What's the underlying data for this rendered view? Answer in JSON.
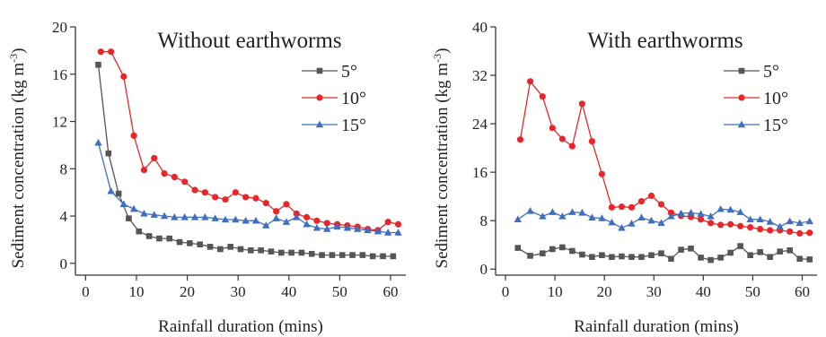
{
  "chart_data": [
    {
      "type": "line",
      "title": "Without earthworms",
      "xlabel": "Rainfall duration (mins)",
      "ylabel": "Sediment concentration (kg m",
      "ylabel_sup": "-3",
      "ylabel_close": ")",
      "xlim": [
        -2,
        63
      ],
      "ylim": [
        -1,
        20
      ],
      "xticks": [
        0,
        10,
        20,
        30,
        40,
        50,
        60
      ],
      "yticks": [
        0,
        4,
        8,
        12,
        16,
        20
      ],
      "legend": "top-right",
      "series": [
        {
          "name": "5°",
          "color": "#555555",
          "marker": "square",
          "x": [
            2.5,
            4.5,
            6.5,
            8.5,
            10.5,
            12.5,
            14.5,
            16.5,
            18.5,
            20.5,
            22.5,
            24.5,
            26.5,
            28.5,
            30.5,
            32.5,
            34.5,
            36.5,
            38.5,
            40.5,
            42.5,
            44.5,
            46.5,
            48.5,
            50.5,
            52.5,
            54.5,
            56.5,
            58.5,
            60.5
          ],
          "y": [
            16.8,
            9.3,
            5.9,
            3.8,
            2.7,
            2.3,
            2.1,
            2.1,
            1.8,
            1.7,
            1.6,
            1.4,
            1.2,
            1.4,
            1.2,
            1.1,
            1.1,
            1.0,
            0.9,
            0.9,
            0.9,
            0.8,
            0.7,
            0.7,
            0.7,
            0.7,
            0.7,
            0.6,
            0.6,
            0.6
          ]
        },
        {
          "name": "10°",
          "color": "#e8262a",
          "marker": "circle",
          "x": [
            3,
            5,
            7.5,
            9.5,
            11.5,
            13.5,
            15.5,
            17.5,
            19.5,
            21.5,
            23.5,
            25.5,
            27.5,
            29.5,
            31.5,
            33.5,
            35.5,
            37.5,
            39.5,
            41.5,
            43.5,
            45.5,
            47.5,
            49.5,
            51.5,
            53.5,
            55.5,
            57.5,
            59.5,
            61.5
          ],
          "y": [
            17.9,
            17.9,
            15.8,
            10.8,
            7.9,
            8.9,
            7.6,
            7.3,
            6.9,
            6.2,
            6.0,
            5.6,
            5.4,
            6.0,
            5.6,
            5.5,
            5.1,
            4.4,
            5.0,
            4.2,
            3.9,
            3.6,
            3.4,
            3.3,
            3.2,
            3.1,
            2.9,
            2.8,
            3.5,
            3.3
          ]
        },
        {
          "name": "15°",
          "color": "#3f6fbf",
          "marker": "triangle",
          "x": [
            2.5,
            5,
            7.5,
            9.5,
            11.5,
            13.5,
            15.5,
            17.5,
            19.5,
            21.5,
            23.5,
            25.5,
            27.5,
            29.5,
            31.5,
            33.5,
            35.5,
            37.5,
            39.5,
            41.5,
            43.5,
            45.5,
            47.5,
            49.5,
            51.5,
            53.5,
            55.5,
            57.5,
            59.5,
            61.5
          ],
          "y": [
            10.2,
            6.1,
            5.0,
            4.6,
            4.2,
            4.1,
            4.0,
            3.9,
            3.9,
            3.9,
            3.9,
            3.8,
            3.7,
            3.7,
            3.6,
            3.6,
            3.2,
            3.8,
            3.5,
            3.9,
            3.3,
            3.0,
            2.9,
            3.1,
            3.0,
            2.9,
            2.8,
            2.7,
            2.6,
            2.6
          ]
        }
      ]
    },
    {
      "type": "line",
      "title": "With earthworms",
      "xlabel": "Rainfall duration (mins)",
      "ylabel": "Sediment concentration (kg m",
      "ylabel_sup": "-3",
      "ylabel_close": ")",
      "xlim": [
        -2,
        63
      ],
      "ylim": [
        -1,
        40
      ],
      "xticks": [
        0,
        10,
        20,
        30,
        40,
        50,
        60
      ],
      "yticks": [
        0,
        8,
        16,
        24,
        32,
        40
      ],
      "legend": "top-right",
      "series": [
        {
          "name": "5°",
          "color": "#555555",
          "marker": "square",
          "x": [
            2.5,
            5,
            7.5,
            9.5,
            11.5,
            13.5,
            15.5,
            17.5,
            19.5,
            21.5,
            23.5,
            25.5,
            27.5,
            29.5,
            31.5,
            33.5,
            35.5,
            37.5,
            39.5,
            41.5,
            43.5,
            45.5,
            47.5,
            49.5,
            51.5,
            53.5,
            55.5,
            57.5,
            59.5,
            61.5
          ],
          "y": [
            3.5,
            2.2,
            2.6,
            3.3,
            3.6,
            3.0,
            2.4,
            2.0,
            2.3,
            2.0,
            2.1,
            2.0,
            2.0,
            2.3,
            2.6,
            1.7,
            3.2,
            3.4,
            1.9,
            1.5,
            1.9,
            2.7,
            3.8,
            2.3,
            2.8,
            2.0,
            2.9,
            3.1,
            1.7,
            1.6
          ]
        },
        {
          "name": "10°",
          "color": "#e8262a",
          "marker": "circle",
          "x": [
            3,
            5,
            7.5,
            9.5,
            11.5,
            13.5,
            15.5,
            17.5,
            19.5,
            21.5,
            23.5,
            25.5,
            27.5,
            29.5,
            31.5,
            33.5,
            35.5,
            37.5,
            39.5,
            41.5,
            43.5,
            45.5,
            47.5,
            49.5,
            51.5,
            53.5,
            55.5,
            57.5,
            59.5,
            61.5
          ],
          "y": [
            21.4,
            31.0,
            28.5,
            23.3,
            21.5,
            20.3,
            27.3,
            21.1,
            15.7,
            10.2,
            10.3,
            10.2,
            11.2,
            12.1,
            10.7,
            9.3,
            8.8,
            8.6,
            8.2,
            7.6,
            7.3,
            7.4,
            7.1,
            6.9,
            6.6,
            6.4,
            6.4,
            6.2,
            5.9,
            6.0
          ]
        },
        {
          "name": "15°",
          "color": "#3f6fbf",
          "marker": "triangle",
          "x": [
            2.5,
            5,
            7.5,
            9.5,
            11.5,
            13.5,
            15.5,
            17.5,
            19.5,
            21.5,
            23.5,
            25.5,
            27.5,
            29.5,
            31.5,
            33.5,
            35.5,
            37.5,
            39.5,
            41.5,
            43.5,
            45.5,
            47.5,
            49.5,
            51.5,
            53.5,
            55.5,
            57.5,
            59.5,
            61.5
          ],
          "y": [
            8.2,
            9.6,
            8.7,
            9.4,
            8.7,
            9.4,
            9.3,
            8.5,
            8.4,
            7.7,
            6.8,
            7.5,
            8.5,
            8.0,
            7.6,
            8.7,
            9.2,
            9.3,
            9.1,
            8.7,
            9.9,
            9.8,
            9.4,
            8.2,
            8.2,
            7.8,
            7.0,
            7.9,
            7.6,
            7.9
          ]
        }
      ]
    }
  ]
}
